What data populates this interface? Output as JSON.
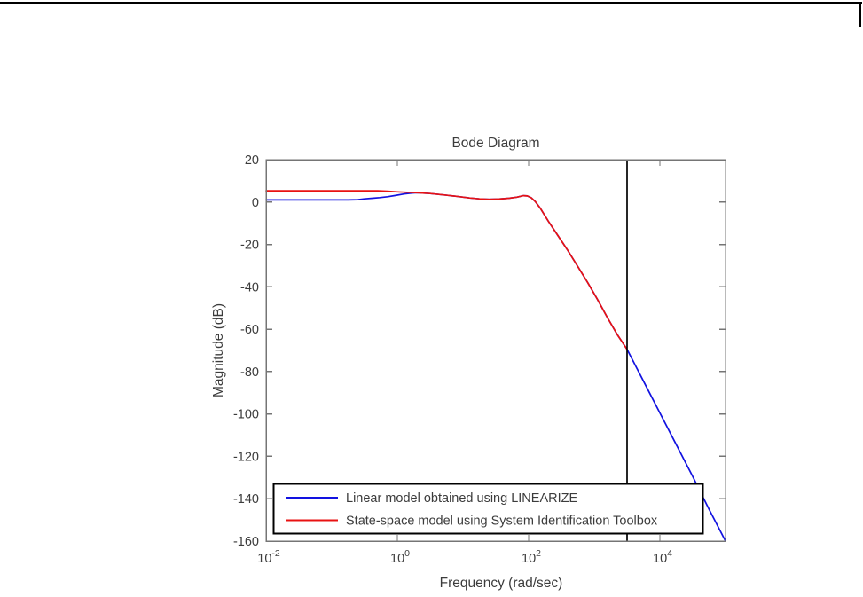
{
  "page": {
    "background": "#ffffff",
    "border_color": "#000000"
  },
  "chart_data": {
    "type": "line",
    "title": "Bode Diagram",
    "xlabel": "Frequency  (rad/sec)",
    "ylabel": "Magnitude (dB)",
    "x_scale": "log10",
    "xlim_log10": [
      -2,
      5
    ],
    "ylim": [
      -160,
      20
    ],
    "x_tick_base": "10",
    "x_ticks_exponents": [
      -2,
      0,
      2,
      4
    ],
    "y_ticks": [
      20,
      0,
      -20,
      -40,
      -60,
      -80,
      -100,
      -120,
      -140,
      -160
    ],
    "grid": false,
    "axis_color": "#757575",
    "text_color": "#3c3c3c",
    "plot_background": "#ffffff",
    "legend": {
      "position": "bottom-left-inside",
      "background": "#ffffff",
      "border_color": "#000000"
    },
    "series": [
      {
        "name": "Linear model obtained using LINEARIZE",
        "color": "#1212e0",
        "points_log10x_db": [
          [
            -2.0,
            1.0
          ],
          [
            -1.5,
            1.0
          ],
          [
            -1.0,
            1.0
          ],
          [
            -0.75,
            1.0
          ],
          [
            -0.6,
            1.1
          ],
          [
            -0.5,
            1.5
          ],
          [
            -0.38,
            1.8
          ],
          [
            -0.27,
            2.1
          ],
          [
            -0.15,
            2.5
          ],
          [
            -0.03,
            3.1
          ],
          [
            0.1,
            3.8
          ],
          [
            0.22,
            4.2
          ],
          [
            0.3,
            4.4
          ],
          [
            0.5,
            4.0
          ],
          [
            0.7,
            3.4
          ],
          [
            0.9,
            2.7
          ],
          [
            1.1,
            1.9
          ],
          [
            1.25,
            1.5
          ],
          [
            1.4,
            1.3
          ],
          [
            1.55,
            1.4
          ],
          [
            1.7,
            1.8
          ],
          [
            1.82,
            2.3
          ],
          [
            1.92,
            3.0
          ],
          [
            1.98,
            2.9
          ],
          [
            2.04,
            2.0
          ],
          [
            2.1,
            0.3
          ],
          [
            2.18,
            -3.0
          ],
          [
            2.3,
            -9.0
          ],
          [
            2.45,
            -16.0
          ],
          [
            2.6,
            -23.0
          ],
          [
            2.75,
            -30.5
          ],
          [
            2.9,
            -38.0
          ],
          [
            3.05,
            -46.0
          ],
          [
            3.2,
            -54.5
          ],
          [
            3.35,
            -62.5
          ],
          [
            3.5,
            -69.5
          ],
          [
            3.6,
            -75.5
          ],
          [
            3.8,
            -87.5
          ],
          [
            4.0,
            -99.5
          ],
          [
            4.25,
            -114.5
          ],
          [
            4.5,
            -129.5
          ],
          [
            4.75,
            -145.0
          ],
          [
            5.0,
            -160.0
          ]
        ]
      },
      {
        "name": "State-space model using System Identification Toolbox",
        "color": "#e81212",
        "points_log10x_db": [
          [
            -2.0,
            5.3
          ],
          [
            -1.5,
            5.3
          ],
          [
            -1.0,
            5.3
          ],
          [
            -0.6,
            5.3
          ],
          [
            -0.3,
            5.3
          ],
          [
            -0.15,
            5.1
          ],
          [
            0.0,
            4.8
          ],
          [
            0.15,
            4.6
          ],
          [
            0.3,
            4.4
          ],
          [
            0.5,
            4.0
          ],
          [
            0.7,
            3.4
          ],
          [
            0.9,
            2.7
          ],
          [
            1.1,
            1.9
          ],
          [
            1.25,
            1.5
          ],
          [
            1.4,
            1.3
          ],
          [
            1.55,
            1.4
          ],
          [
            1.7,
            1.8
          ],
          [
            1.82,
            2.3
          ],
          [
            1.92,
            3.0
          ],
          [
            1.98,
            2.9
          ],
          [
            2.04,
            2.0
          ],
          [
            2.1,
            0.3
          ],
          [
            2.18,
            -3.0
          ],
          [
            2.3,
            -9.0
          ],
          [
            2.45,
            -16.0
          ],
          [
            2.6,
            -23.0
          ],
          [
            2.75,
            -30.5
          ],
          [
            2.9,
            -38.0
          ],
          [
            3.05,
            -46.0
          ],
          [
            3.2,
            -54.5
          ],
          [
            3.35,
            -62.5
          ],
          [
            3.5,
            -69.5
          ]
        ]
      }
    ],
    "annotations": [
      {
        "type": "vline",
        "x_log10": 3.5,
        "color": "#000000"
      }
    ]
  }
}
